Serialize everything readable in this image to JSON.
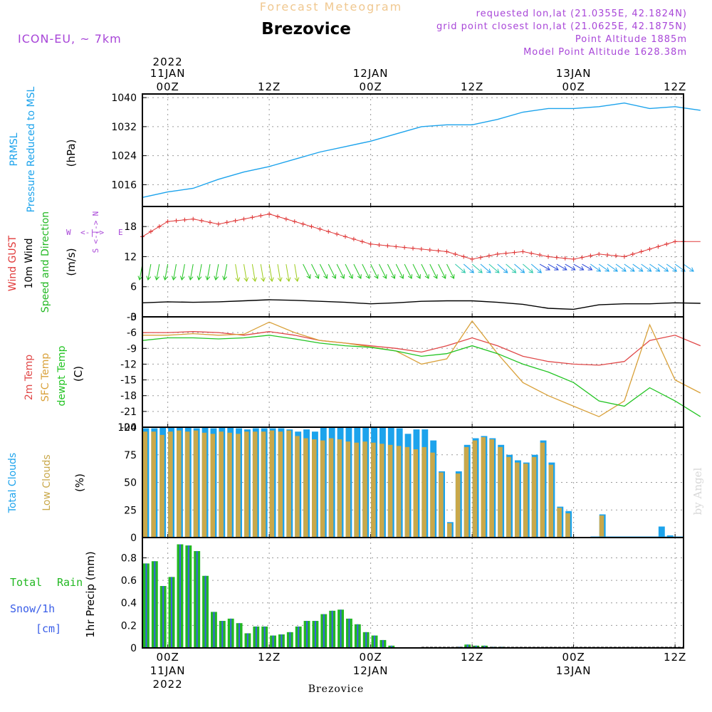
{
  "header": {
    "top_title": "Forecast Meteogram",
    "station": "Brezovice",
    "model": "ICON-EU, ~ 7km",
    "requested": "requested lon,lat (21.0355E, 42.1824N)",
    "grid": "grid point closest lon,lat (21.0625E, 42.1875N)",
    "point_alt": "Point Altitude 1885m",
    "model_alt": "Model Point Altitude 1628.38m",
    "watermark": "by Angel",
    "footer_station": "Brezovice"
  },
  "time_axis": {
    "start_hour": -3,
    "end_hour": 61,
    "ticks": [
      {
        "hour": 0,
        "top": [
          "2022",
          "11JAN",
          "00Z"
        ],
        "bottom": [
          "00Z",
          "11JAN",
          "2022"
        ]
      },
      {
        "hour": 12,
        "top": [
          "",
          "",
          "12Z"
        ],
        "bottom": [
          "12Z",
          "",
          ""
        ]
      },
      {
        "hour": 24,
        "top": [
          "",
          "12JAN",
          "00Z"
        ],
        "bottom": [
          "00Z",
          "12JAN",
          ""
        ]
      },
      {
        "hour": 36,
        "top": [
          "",
          "",
          "12Z"
        ],
        "bottom": [
          "12Z",
          "",
          ""
        ]
      },
      {
        "hour": 48,
        "top": [
          "",
          "13JAN",
          "00Z"
        ],
        "bottom": [
          "00Z",
          "13JAN",
          ""
        ]
      },
      {
        "hour": 60,
        "top": [
          "",
          "",
          "12Z"
        ],
        "bottom": [
          "12Z",
          "",
          ""
        ]
      }
    ]
  },
  "panel_labels": {
    "pressure": {
      "l1": "PRMSL",
      "l2": "Pressure Reduced to MSL",
      "unit": "(hPa)"
    },
    "wind": {
      "l1": "Wind GUST",
      "l2": "10m Wind",
      "l3": "Speed and Direction",
      "unit": "(m/s)",
      "compass_n": "N",
      "compass_s": "S",
      "compass_w": "W",
      "compass_e": "E",
      "compass_arrow": "<-|->"
    },
    "temp": {
      "l1": "2m Temp",
      "l2": "SFC Temp",
      "l3": "dewpt Temp",
      "unit": "(C)"
    },
    "clouds": {
      "l1": "Total Clouds",
      "l2": "Low Clouds",
      "unit": "(%)"
    },
    "precip": {
      "l1": "Total",
      "l1b": "Rain",
      "l2": "Snow/1h",
      "l3": "[cm]",
      "unit": "1hr Precip (mm)"
    }
  },
  "colors": {
    "pressure": "#1ca3ec",
    "gust": "#e03a3a",
    "wind10m": "#000000",
    "temp2m": "#e04848",
    "sfc": "#d9a13a",
    "dewpt": "#22c422",
    "total_cloud": "#1ca3ec",
    "low_cloud": "#c9a84a",
    "precip_total": "#22b822",
    "precip_snow": "#3a5ee8",
    "title_faint": "#f0c890",
    "info": "#a846d8"
  },
  "chart_data": [
    {
      "type": "line",
      "title": "PRMSL Pressure Reduced to MSL",
      "ylabel": "(hPa)",
      "ylim": [
        1010,
        1041
      ],
      "yticks": [
        1016,
        1024,
        1032,
        1040
      ],
      "x": [
        -3,
        0,
        3,
        6,
        9,
        12,
        15,
        18,
        21,
        24,
        27,
        30,
        33,
        36,
        39,
        42,
        45,
        48,
        51,
        54,
        57,
        60,
        63
      ],
      "series": [
        {
          "name": "PRMSL",
          "values": [
            1012.5,
            1014,
            1015,
            1017.5,
            1019.5,
            1021,
            1023,
            1025,
            1026.5,
            1028,
            1030,
            1032,
            1032.5,
            1032.5,
            1034,
            1036,
            1037,
            1037,
            1037.5,
            1038.5,
            1037,
            1037.5,
            1036.5
          ]
        }
      ]
    },
    {
      "type": "line",
      "title": "Wind GUST / 10m Wind Speed and Direction",
      "ylabel": "(m/s)",
      "ylim": [
        0,
        22
      ],
      "yticks": [
        0,
        6,
        12,
        18
      ],
      "x": [
        -3,
        0,
        3,
        6,
        9,
        12,
        15,
        18,
        21,
        24,
        27,
        30,
        33,
        36,
        39,
        42,
        45,
        48,
        51,
        54,
        57,
        60,
        63
      ],
      "series": [
        {
          "name": "Wind GUST",
          "values": [
            16,
            19,
            19.5,
            18.5,
            19.5,
            20.5,
            19,
            17.5,
            16,
            14.5,
            14,
            13.5,
            13,
            11.5,
            12.5,
            13,
            12,
            11.5,
            12.5,
            12,
            13.5,
            15,
            15
          ]
        },
        {
          "name": "10m Wind",
          "values": [
            2.8,
            3,
            2.9,
            3,
            3.2,
            3.4,
            3.3,
            3.1,
            2.9,
            2.6,
            2.8,
            3.1,
            3.2,
            3.2,
            2.9,
            2.5,
            1.7,
            1.5,
            2.4,
            2.6,
            2.6,
            2.8,
            2.7
          ]
        }
      ]
    },
    {
      "type": "line",
      "title": "2m Temp / SFC Temp / dewpt Temp",
      "ylabel": "(C)",
      "ylim": [
        -24,
        -3
      ],
      "yticks": [
        -24,
        -21,
        -18,
        -15,
        -12,
        -9,
        -6,
        -3
      ],
      "x": [
        -3,
        0,
        3,
        6,
        9,
        12,
        15,
        18,
        21,
        24,
        27,
        30,
        33,
        36,
        39,
        42,
        45,
        48,
        51,
        54,
        57,
        60,
        63
      ],
      "series": [
        {
          "name": "2m Temp",
          "values": [
            -6,
            -6,
            -5.8,
            -6,
            -6.5,
            -5.8,
            -6.5,
            -7.5,
            -8,
            -8.5,
            -9,
            -9.7,
            -8.5,
            -7,
            -8.5,
            -10.5,
            -11.5,
            -12,
            -12.2,
            -11.5,
            -7.5,
            -6.5,
            -8.5
          ]
        },
        {
          "name": "SFC Temp",
          "values": [
            -6.5,
            -6.5,
            -6.2,
            -6.5,
            -6.3,
            -4,
            -6,
            -7.5,
            -8,
            -8.7,
            -9.5,
            -12,
            -11,
            -3.8,
            -10,
            -15.5,
            -18,
            -20,
            -22,
            -19,
            -4.5,
            -15,
            -17.5
          ]
        },
        {
          "name": "dewpt Temp",
          "values": [
            -7.5,
            -7,
            -7,
            -7.2,
            -7,
            -6.5,
            -7.2,
            -8,
            -8.5,
            -8.8,
            -9.5,
            -10.5,
            -10,
            -8.5,
            -10,
            -12,
            -13.5,
            -15.5,
            -19,
            -20,
            -16.5,
            -19,
            -22
          ]
        }
      ]
    },
    {
      "type": "bar",
      "title": "Total Clouds / Low Clouds",
      "ylabel": "(%)",
      "ylim": [
        0,
        100
      ],
      "yticks": [
        0,
        25,
        50,
        75,
        100
      ],
      "categories": [
        -3,
        -2,
        -1,
        0,
        1,
        2,
        3,
        4,
        5,
        6,
        7,
        8,
        9,
        10,
        11,
        12,
        13,
        14,
        15,
        16,
        17,
        18,
        19,
        20,
        21,
        22,
        23,
        24,
        25,
        26,
        27,
        28,
        29,
        30,
        31,
        32,
        33,
        34,
        35,
        36,
        37,
        38,
        39,
        40,
        41,
        42,
        43,
        44,
        45,
        46,
        47,
        48,
        49,
        50,
        51,
        52,
        53,
        54,
        55,
        56,
        57,
        58,
        59,
        60,
        61,
        62
      ],
      "series": [
        {
          "name": "Total Clouds",
          "values": [
            99,
            99,
            100,
            100,
            100,
            100,
            99,
            100,
            99,
            100,
            100,
            99,
            98,
            99,
            99,
            99,
            99,
            98,
            96,
            98,
            96,
            100,
            100,
            100,
            100,
            100,
            100,
            100,
            100,
            100,
            99,
            94,
            98,
            98,
            88,
            60,
            14,
            60,
            84,
            90,
            92,
            90,
            84,
            75,
            70,
            68,
            75,
            88,
            68,
            28,
            24,
            0,
            0,
            0,
            21,
            0,
            0,
            0,
            0,
            0,
            0,
            10,
            2,
            0,
            0,
            0
          ]
        },
        {
          "name": "Low Clouds",
          "values": [
            96,
            96,
            93,
            96,
            97,
            96,
            97,
            95,
            94,
            96,
            95,
            94,
            96,
            96,
            96,
            97,
            96,
            97,
            92,
            90,
            89,
            88,
            90,
            89,
            87,
            86,
            87,
            86,
            85,
            84,
            83,
            82,
            80,
            82,
            77,
            59,
            13,
            58,
            82,
            88,
            91,
            89,
            82,
            73,
            68,
            67,
            73,
            86,
            66,
            27,
            22,
            0,
            0,
            0,
            20,
            0,
            0,
            0,
            0,
            0,
            0,
            0,
            0,
            0,
            0,
            0
          ]
        }
      ]
    },
    {
      "type": "bar",
      "title": "1hr Precip (mm)",
      "ylabel": "1hr Precip (mm)",
      "ylim": [
        0,
        0.98
      ],
      "yticks": [
        0,
        0.2,
        0.4,
        0.6,
        0.8
      ],
      "categories": [
        -3,
        -2,
        -1,
        0,
        1,
        2,
        3,
        4,
        5,
        6,
        7,
        8,
        9,
        10,
        11,
        12,
        13,
        14,
        15,
        16,
        17,
        18,
        19,
        20,
        21,
        22,
        23,
        24,
        25,
        26,
        27,
        28,
        29,
        30,
        31,
        32,
        33,
        34,
        35,
        36,
        37,
        38,
        39,
        40,
        41,
        42,
        43,
        44,
        45,
        46,
        47,
        48,
        49,
        50,
        51,
        52,
        53,
        54,
        55,
        56,
        57,
        58,
        59,
        60,
        61,
        62
      ],
      "series": [
        {
          "name": "Total",
          "values": [
            0.75,
            0.77,
            0.55,
            0.63,
            0.92,
            0.91,
            0.86,
            0.64,
            0.32,
            0.24,
            0.26,
            0.22,
            0.13,
            0.19,
            0.19,
            0.11,
            0.12,
            0.14,
            0.19,
            0.24,
            0.24,
            0.3,
            0.33,
            0.34,
            0.26,
            0.21,
            0.14,
            0.11,
            0.07,
            0.02,
            0,
            0,
            0,
            0,
            0,
            0,
            0,
            0.01,
            0.03,
            0.02,
            0.02,
            0.01,
            0.01,
            0,
            0,
            0,
            0,
            0,
            0,
            0,
            0,
            0,
            0,
            0,
            0,
            0,
            0,
            0,
            0,
            0,
            0,
            0,
            0,
            0,
            0,
            0
          ]
        }
      ]
    }
  ]
}
